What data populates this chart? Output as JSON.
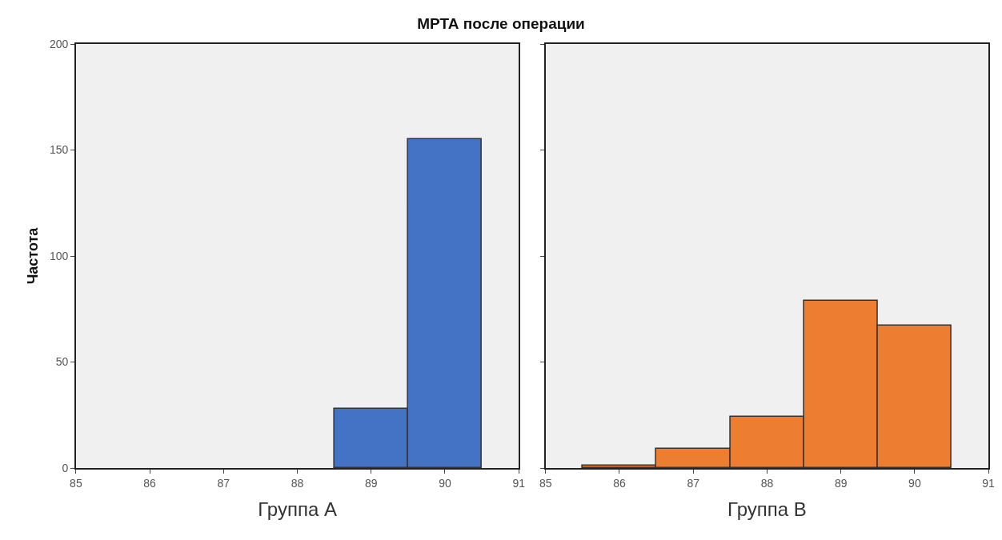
{
  "chart_data": [
    {
      "type": "histogram",
      "title": "МРТА после операции",
      "ylabel": "Частота",
      "xlabel": "Группа А",
      "bins": [
        88.5,
        89.5,
        90.5
      ],
      "values": [
        28,
        155
      ],
      "color": "#4472c4",
      "xlim": [
        85,
        91
      ],
      "xticks": [
        85,
        86,
        87,
        88,
        89,
        90,
        91
      ],
      "ylim": [
        0,
        200
      ],
      "yticks": [
        0,
        50,
        100,
        150,
        200
      ],
      "grid": false,
      "legend": false
    },
    {
      "type": "histogram",
      "xlabel": "Группа В",
      "bins": [
        85.5,
        86.5,
        87.5,
        88.5,
        89.5,
        90.5
      ],
      "values": [
        1,
        9,
        24,
        79,
        67
      ],
      "color": "#ed7d31",
      "xlim": [
        85,
        91
      ],
      "xticks": [
        85,
        86,
        87,
        88,
        89,
        90,
        91
      ],
      "ylim": [
        0,
        200
      ],
      "yticks": [
        0,
        50,
        100,
        150,
        200
      ],
      "grid": false,
      "legend": false,
      "tick_labels": "x"
    }
  ]
}
